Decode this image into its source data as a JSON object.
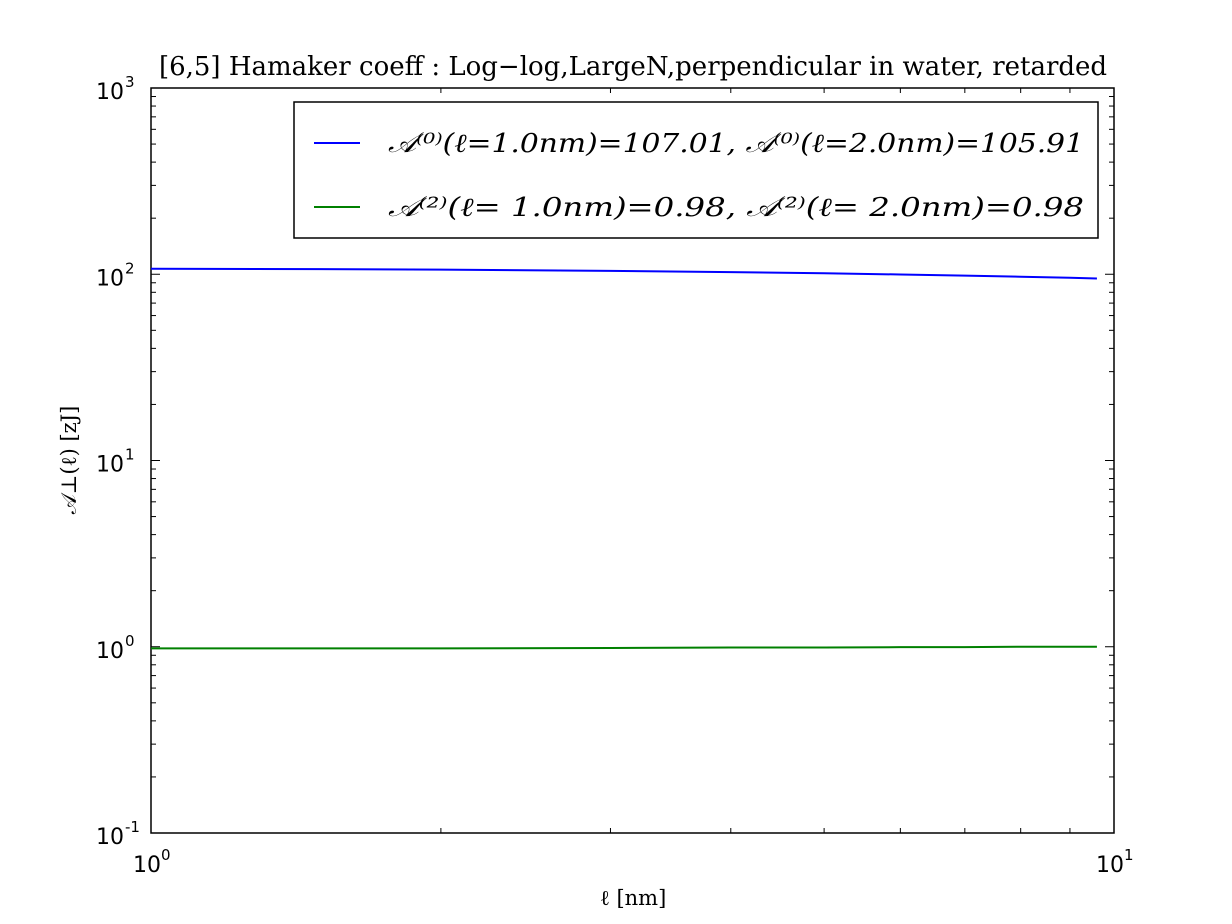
{
  "chart_data": {
    "type": "line",
    "title": "[6,5]  Hamaker coeff : Log−log,LargeN,perpendicular in water, retarded",
    "xlabel": "ℓ   [nm]",
    "ylabel": "𝒜⊥(ℓ)   [zJ]",
    "xscale": "log",
    "yscale": "log",
    "xlim": [
      1,
      10
    ],
    "ylim": [
      0.1,
      1000
    ],
    "x_ticks": [
      {
        "value": 1,
        "base": "10",
        "exp": "0"
      },
      {
        "value": 10,
        "base": "10",
        "exp": "1"
      }
    ],
    "y_ticks": [
      {
        "value": 0.1,
        "base": "10",
        "exp": "-1"
      },
      {
        "value": 1,
        "base": "10",
        "exp": "0"
      },
      {
        "value": 10,
        "base": "10",
        "exp": "1"
      },
      {
        "value": 100,
        "base": "10",
        "exp": "2"
      },
      {
        "value": 1000,
        "base": "10",
        "exp": "3"
      }
    ],
    "grid": false,
    "legend_position": "top-right",
    "series": [
      {
        "name": "𝒜⁽⁰⁾(ℓ=1.0nm)=107.01,   𝒜⁽⁰⁾(ℓ=2.0nm)=105.91",
        "color": "#0000ff",
        "x": [
          1.0,
          1.5,
          2.0,
          3.0,
          4.0,
          5.0,
          6.0,
          7.0,
          8.0,
          9.0,
          9.6
        ],
        "y": [
          107.01,
          106.6,
          105.91,
          104.3,
          102.7,
          101.2,
          99.7,
          98.3,
          97.0,
          95.8,
          94.9
        ]
      },
      {
        "name": "𝒜⁽²⁾(ℓ= 1.0nm)=0.98,   𝒜⁽²⁾(ℓ= 2.0nm)=0.98",
        "color": "#008000",
        "x": [
          1.0,
          2.0,
          3.0,
          4.0,
          5.0,
          6.0,
          7.0,
          8.0,
          9.0,
          9.6
        ],
        "y": [
          0.98,
          0.98,
          0.985,
          0.99,
          0.99,
          0.995,
          0.995,
          1.0,
          1.0,
          1.0
        ]
      }
    ]
  }
}
